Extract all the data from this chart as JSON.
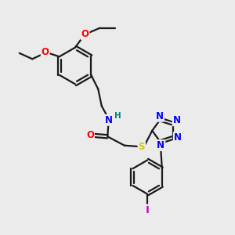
{
  "bg_color": "#ebebeb",
  "line_color": "#1a1a1a",
  "bond_width": 1.6,
  "atom_colors": {
    "O": "#ff0000",
    "N": "#0000ff",
    "S": "#cccc00",
    "I": "#cc00cc",
    "H_amide": "#008080",
    "C": "#1a1a1a"
  }
}
